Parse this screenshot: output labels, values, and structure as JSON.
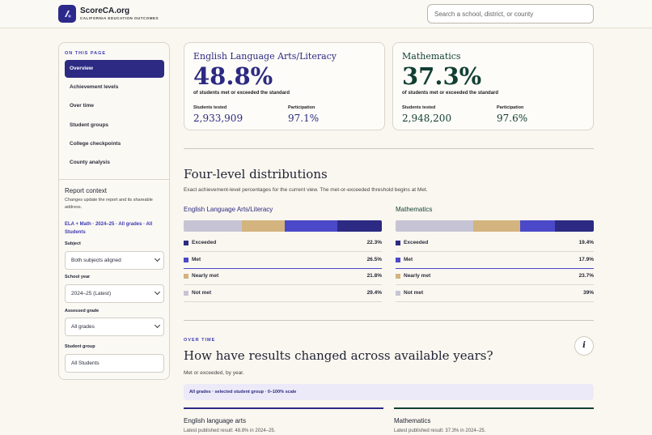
{
  "header": {
    "brand": "ScoreCA.org",
    "tagline": "CALIFORNIA EDUCATION OUTCOMES",
    "search_placeholder": "Search a school, district, or county",
    "logo_color": "#2b2a8a"
  },
  "sidebar": {
    "heading": "ON THIS PAGE",
    "items": [
      {
        "label": "Overview",
        "active": true
      },
      {
        "label": "Achievement levels"
      },
      {
        "label": "Over time"
      },
      {
        "label": "Student groups"
      },
      {
        "label": "College checkpoints"
      },
      {
        "label": "County analysis"
      }
    ],
    "report_context": {
      "title": "Report context",
      "description": "Changes update the report and its shareable address.",
      "summary_link": "ELA + Math · 2024–25 · All grades · All Students",
      "fields": [
        {
          "label": "Subject",
          "value": "Both subjects aligned"
        },
        {
          "label": "School year",
          "value": "2024–25 (Latest)"
        },
        {
          "label": "Assessed grade",
          "value": "All grades"
        },
        {
          "label": "Student group",
          "value": "All Students"
        }
      ]
    }
  },
  "cards": [
    {
      "title": "English Language Arts/Literacy",
      "percent": "48.8%",
      "subtitle": "of students met or exceeded the standard",
      "tested_label": "Students tested",
      "tested_value": "2,933,909",
      "participation_label": "Participation",
      "participation_value": "97.1%",
      "color": "#2c2a82"
    },
    {
      "title": "Mathematics",
      "percent": "37.3%",
      "subtitle": "of students met or exceeded the standard",
      "tested_label": "Students tested",
      "tested_value": "2,948,200",
      "participation_label": "Participation",
      "participation_value": "97.6%",
      "color": "#123f33"
    }
  ],
  "distributions": {
    "heading": "Four-level distributions",
    "description": "Exact achievement-level percentages for the current view. The met-or-exceeded threshold begins at Met.",
    "level_colors": {
      "Exceeded": "#2c2a82",
      "Met": "#4b49c9",
      "Nearly met": "#d3b47e",
      "Not met": "#c6c4d4"
    },
    "subjects": [
      {
        "name": "English Language Arts/Literacy",
        "title_color": "#2c2a82",
        "levels": [
          {
            "label": "Exceeded",
            "value": 22.3,
            "display": "22.3%"
          },
          {
            "label": "Met",
            "value": 26.5,
            "display": "26.5%"
          },
          {
            "label": "Nearly met",
            "value": 21.8,
            "display": "21.8%"
          },
          {
            "label": "Not met",
            "value": 29.4,
            "display": "29.4%"
          }
        ]
      },
      {
        "name": "Mathematics",
        "title_color": "#123f33",
        "levels": [
          {
            "label": "Exceeded",
            "value": 19.4,
            "display": "19.4%"
          },
          {
            "label": "Met",
            "value": 17.9,
            "display": "17.9%"
          },
          {
            "label": "Nearly met",
            "value": 23.7,
            "display": "23.7%"
          },
          {
            "label": "Not met",
            "value": 39,
            "display": "39%"
          }
        ]
      }
    ]
  },
  "over_time": {
    "kicker": "OVER TIME",
    "heading": "How have results changed across available years?",
    "description": "Met or exceeded, by year.",
    "info_label": "i",
    "scale_note": "All grades · selected student group · 0–100% scale",
    "panels": [
      {
        "title": "English language arts",
        "latest": "Latest published result: 48.8% in 2024–25.",
        "color": "#2c2a82"
      },
      {
        "title": "Mathematics",
        "latest": "Latest published result: 37.3% in 2024–25.",
        "color": "#123f33"
      }
    ]
  }
}
